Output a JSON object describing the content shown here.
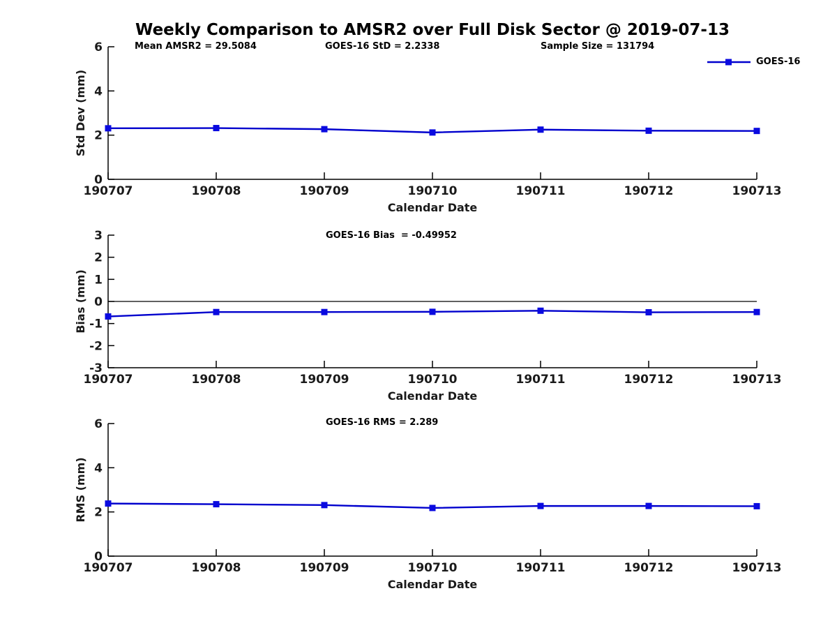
{
  "title": "Weekly Comparison to AMSR2 over Full Disk Sector @ 2019-07-13",
  "colors": {
    "line": "#0000cd",
    "marker": "#0a0ae0",
    "axis": "#000000",
    "tick_text": "#1a1a1a"
  },
  "legend": {
    "label": "GOES-16",
    "position": "top-right",
    "frame": false
  },
  "x_axis": {
    "label": "Calendar Date",
    "categories": [
      "190707",
      "190708",
      "190709",
      "190710",
      "190711",
      "190712",
      "190713"
    ]
  },
  "chart_data": [
    {
      "type": "line",
      "title": "",
      "xlabel": "Calendar Date",
      "ylabel": "Std Dev (mm)",
      "ylim": [
        0,
        6
      ],
      "yticks": [
        0,
        2,
        4,
        6
      ],
      "grid": false,
      "zero_line": false,
      "categories": [
        "190707",
        "190708",
        "190709",
        "190710",
        "190711",
        "190712",
        "190713"
      ],
      "series": [
        {
          "name": "GOES-16",
          "marker": "square",
          "values": [
            2.31,
            2.32,
            2.27,
            2.12,
            2.25,
            2.2,
            2.19
          ]
        }
      ],
      "annotations": [
        "Mean AMSR2 = 29.5084",
        "GOES-16 StD = 2.2338",
        "Sample Size = 131794"
      ]
    },
    {
      "type": "line",
      "title": "",
      "xlabel": "Calendar Date",
      "ylabel": "Bias (mm)",
      "ylim": [
        -3,
        3
      ],
      "yticks": [
        -3,
        -2,
        -1,
        0,
        1,
        2,
        3
      ],
      "grid": false,
      "zero_line": true,
      "categories": [
        "190707",
        "190708",
        "190709",
        "190710",
        "190711",
        "190712",
        "190713"
      ],
      "series": [
        {
          "name": "GOES-16",
          "marker": "square",
          "values": [
            -0.68,
            -0.48,
            -0.48,
            -0.47,
            -0.42,
            -0.49,
            -0.48
          ]
        }
      ],
      "annotations": [
        "GOES-16 Bias  = -0.49952"
      ]
    },
    {
      "type": "line",
      "title": "",
      "xlabel": "Calendar Date",
      "ylabel": "RMS (mm)",
      "ylim": [
        0,
        6
      ],
      "yticks": [
        0,
        2,
        4,
        6
      ],
      "grid": false,
      "zero_line": false,
      "categories": [
        "190707",
        "190708",
        "190709",
        "190710",
        "190711",
        "190712",
        "190713"
      ],
      "series": [
        {
          "name": "GOES-16",
          "marker": "square",
          "values": [
            2.38,
            2.35,
            2.31,
            2.18,
            2.27,
            2.27,
            2.26
          ]
        }
      ],
      "annotations": [
        "GOES-16 RMS = 2.289"
      ]
    }
  ]
}
